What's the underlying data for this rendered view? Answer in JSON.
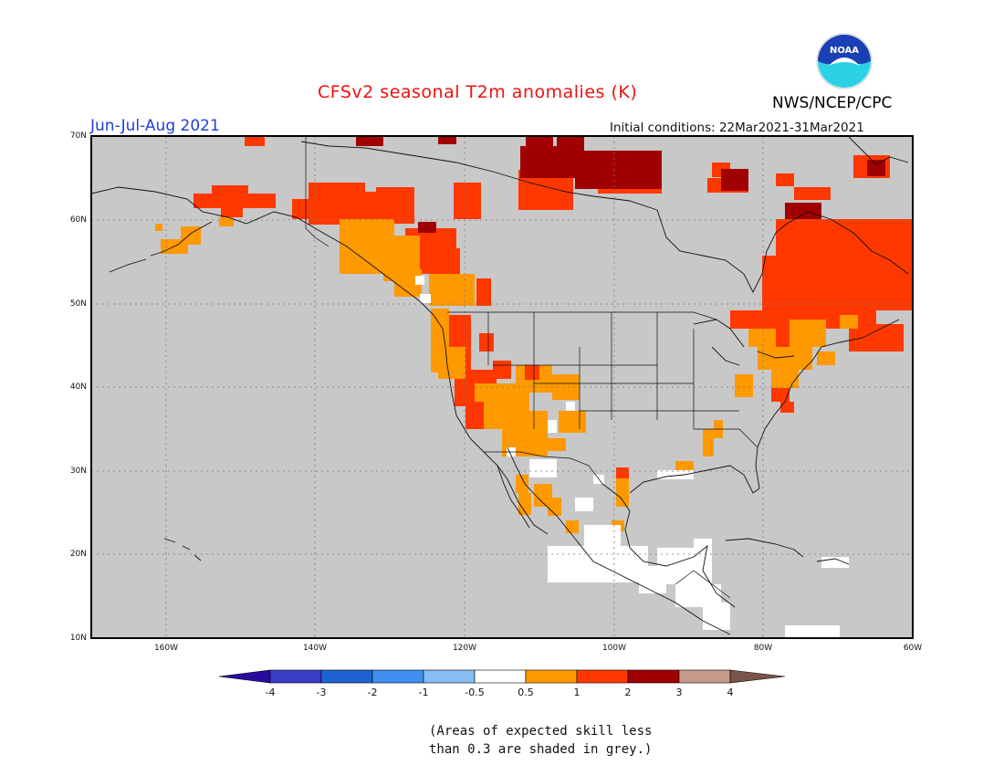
{
  "header": {
    "title": "CFSv2 seasonal T2m anomalies (K)",
    "agency": "NWS/NCEP/CPC",
    "season": "Jun-Jul-Aug 2021",
    "initial_conditions": "Initial conditions: 22Mar2021-31Mar2021",
    "logo_text": "NOAA"
  },
  "map": {
    "lat_labels": [
      "70N",
      "60N",
      "50N",
      "40N",
      "30N",
      "20N",
      "10N"
    ],
    "lon_labels": [
      "160W",
      "140W",
      "120W",
      "100W",
      "80W",
      "60W"
    ],
    "background_color": "#c8c8c8"
  },
  "colorbar": {
    "colors": [
      "#2a0a9e",
      "#3c3dc7",
      "#1e63d1",
      "#3f8ef0",
      "#86bdf5",
      "#ffffff",
      "#ff9900",
      "#ff3800",
      "#a00000",
      "#c79a8c",
      "#7a5448"
    ],
    "labels": [
      "-4",
      "-3",
      "-2",
      "-1",
      "-0.5",
      "0.5",
      "1",
      "2",
      "3",
      "4"
    ]
  },
  "note": {
    "line1": "(Areas of expected skill less",
    "line2": "than 0.3 are shaded in grey.)"
  }
}
